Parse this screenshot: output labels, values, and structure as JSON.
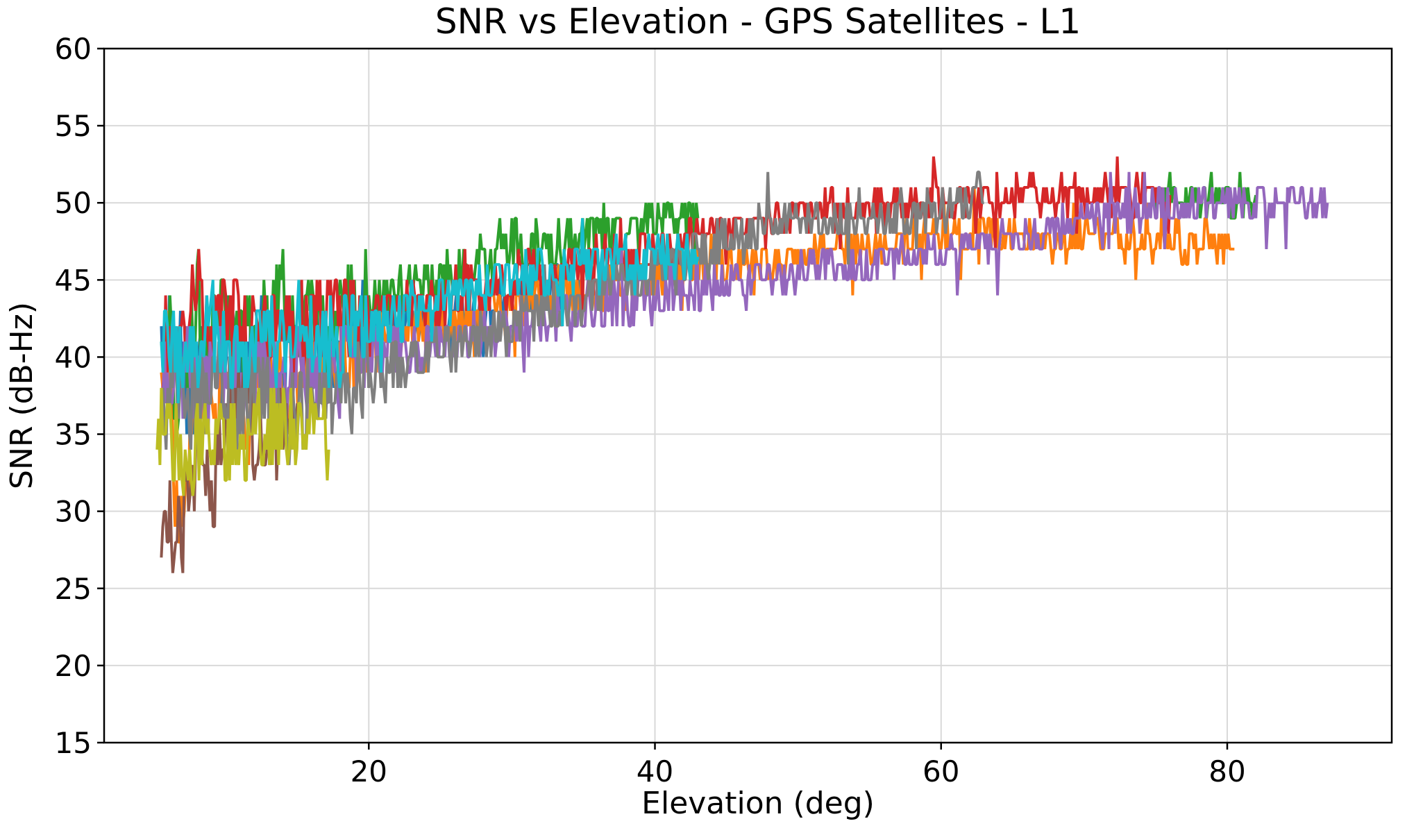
{
  "chart_data": {
    "type": "line",
    "title": "SNR vs Elevation - GPS Satellites - L1",
    "xlabel": "Elevation (deg)",
    "ylabel": "SNR (dB-Hz)",
    "xlim": [
      1.5,
      91.5
    ],
    "ylim": [
      15,
      60
    ],
    "xticks": [
      20,
      40,
      60,
      80
    ],
    "yticks": [
      15,
      20,
      25,
      30,
      35,
      40,
      45,
      50,
      55,
      60
    ],
    "grid": true,
    "legend": "none",
    "series": [
      {
        "color": "#1f77b4",
        "x": [
          5.5,
          6.5,
          7.5,
          8.5,
          9.5,
          10.5,
          11.5,
          12.5,
          13.5,
          14.5,
          16,
          18,
          20,
          22,
          24,
          26,
          28,
          30,
          32,
          33,
          34,
          35
        ],
        "y": [
          40,
          42,
          36,
          41,
          39,
          43,
          38,
          41,
          36,
          42,
          40,
          41,
          42,
          43,
          42,
          43,
          43,
          44,
          44,
          45,
          45,
          44
        ]
      },
      {
        "color": "#ff7f0e",
        "x": [
          5.5,
          6,
          6.8,
          7.5,
          8.5,
          9.5,
          10.5,
          11.5,
          12.5,
          14,
          16,
          18,
          20,
          22,
          24,
          26,
          28,
          30,
          32,
          35,
          38,
          40,
          42,
          45,
          48,
          50,
          52,
          55,
          58,
          60,
          62,
          65,
          68,
          70,
          72,
          75,
          78,
          80.5
        ],
        "y": [
          37,
          40,
          29,
          35,
          38,
          37,
          39,
          35,
          40,
          38,
          39,
          40,
          41,
          41,
          42,
          42,
          43,
          43,
          44,
          44,
          45,
          45,
          46,
          46,
          46,
          47,
          47,
          47,
          47.5,
          48,
          48,
          48,
          47.5,
          48,
          47.5,
          47.5,
          47.5,
          47
        ]
      },
      {
        "color": "#2ca02c",
        "x": [
          5.5,
          6,
          6.5,
          7,
          7.5,
          8,
          8.5,
          9,
          10,
          11,
          12,
          13,
          14,
          15,
          16,
          17,
          18,
          19,
          20,
          22,
          24,
          26,
          28,
          30,
          32,
          34,
          36,
          38,
          40,
          42,
          43
        ],
        "y": [
          38,
          43,
          34,
          42,
          40,
          44,
          38,
          42,
          44,
          40,
          43,
          42,
          44,
          42,
          44,
          42,
          43,
          43,
          44,
          44,
          45,
          46,
          46,
          47,
          47,
          48,
          48,
          48,
          49,
          49,
          49
        ]
      },
      {
        "color": "#2ca02c",
        "x": [
          75,
          76,
          77,
          78,
          79,
          80,
          81,
          82
        ],
        "y": [
          50,
          50.5,
          50,
          50.5,
          50,
          50.5,
          50,
          50.5
        ]
      },
      {
        "color": "#d62728",
        "x": [
          5.5,
          6,
          7,
          8,
          9,
          10,
          11,
          12,
          52,
          54,
          56,
          58,
          60,
          62,
          64,
          66,
          68,
          70,
          72,
          74,
          76
        ],
        "y": [
          40,
          42,
          41,
          44,
          41,
          43,
          42,
          41,
          49.5,
          49.5,
          49.5,
          49.5,
          50,
          50,
          50.5,
          50.5,
          50.5,
          50.5,
          50.5,
          50.5,
          50.5
        ]
      },
      {
        "color": "#9467bd",
        "x": [
          5.5,
          7,
          9,
          11,
          13,
          15,
          17,
          20,
          25,
          30,
          40,
          45,
          50,
          55,
          58,
          62,
          66,
          70,
          74,
          78,
          80,
          82,
          84,
          86,
          87
        ],
        "y": [
          38,
          39,
          38,
          39,
          38.5,
          39,
          38.5,
          40,
          41,
          42,
          44,
          45,
          45.5,
          46,
          46.5,
          47,
          48,
          49,
          49.5,
          50,
          50,
          50,
          50,
          50,
          50
        ]
      },
      {
        "color": "#8c564b",
        "x": [
          5.5,
          6,
          6.5,
          7,
          7.5,
          8,
          8.5,
          9,
          10,
          11,
          12,
          13,
          14,
          15
        ],
        "y": [
          28,
          30,
          27,
          29,
          32,
          34,
          33,
          31,
          36,
          38,
          35,
          34,
          36,
          37
        ]
      },
      {
        "color": "#7f7f7f",
        "x": [
          5.5,
          6.5,
          8,
          9.5,
          11,
          12.5,
          14,
          15.5,
          48,
          52,
          56,
          60,
          62,
          63
        ],
        "y": [
          36,
          38,
          37,
          39,
          36,
          38,
          35,
          37,
          48.5,
          49,
          49,
          49.5,
          50,
          50
        ]
      },
      {
        "color": "#bcbd22",
        "x": [
          5.2,
          5.8,
          6.2,
          16.8,
          17,
          17.2
        ],
        "y": [
          35,
          36,
          34,
          36,
          35,
          34
        ]
      },
      {
        "color": "#17becf",
        "x": [
          5.5,
          7,
          9,
          11,
          13,
          15,
          17,
          20,
          23,
          26,
          30,
          33,
          36,
          40,
          43
        ],
        "y": [
          41,
          40,
          42,
          40,
          41,
          42,
          41,
          42,
          43,
          44,
          45,
          45.5,
          46,
          46.5,
          46.5
        ]
      }
    ]
  }
}
